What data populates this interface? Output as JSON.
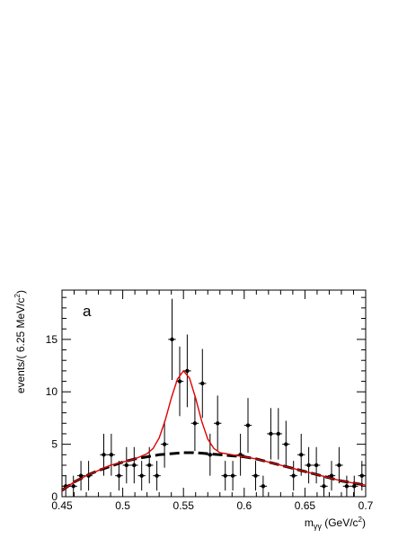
{
  "chart_data": {
    "type": "scatter",
    "panel_label": "a",
    "xlabel": "m_{γγ} (GeV/c²)",
    "xlabel_parts": {
      "main": "m",
      "sub": "γγ",
      "unit_pre": " (GeV/c",
      "unit_sup": "2",
      "unit_post": ")"
    },
    "ylabel": "events/( 6.25 MeV/c²)",
    "ylabel_parts": {
      "main": "events/( 6.25 MeV/c",
      "sup": "2",
      "post": ")"
    },
    "xlim": [
      0.45,
      0.7
    ],
    "ylim": [
      0,
      19.7
    ],
    "x_ticks": [
      {
        "value": 0.45,
        "label": "0.45"
      },
      {
        "value": 0.5,
        "label": "0.5"
      },
      {
        "value": 0.55,
        "label": "0.55"
      },
      {
        "value": 0.6,
        "label": "0.6"
      },
      {
        "value": 0.65,
        "label": "0.65"
      },
      {
        "value": 0.7,
        "label": "0.7"
      }
    ],
    "y_ticks": [
      {
        "value": 0,
        "label": "0"
      },
      {
        "value": 5,
        "label": "5"
      },
      {
        "value": 10,
        "label": "10"
      },
      {
        "value": 15,
        "label": "15"
      }
    ],
    "bin_width": 0.00625,
    "data_points": [
      {
        "x": 0.4531,
        "y": 1
      },
      {
        "x": 0.4594,
        "y": 1
      },
      {
        "x": 0.4656,
        "y": 2
      },
      {
        "x": 0.4719,
        "y": 2
      },
      {
        "x": 0.4844,
        "y": 4
      },
      {
        "x": 0.4906,
        "y": 4
      },
      {
        "x": 0.4969,
        "y": 2
      },
      {
        "x": 0.5031,
        "y": 3
      },
      {
        "x": 0.5094,
        "y": 3
      },
      {
        "x": 0.5156,
        "y": 2
      },
      {
        "x": 0.5219,
        "y": 3
      },
      {
        "x": 0.5281,
        "y": 2
      },
      {
        "x": 0.5344,
        "y": 5
      },
      {
        "x": 0.5406,
        "y": 15
      },
      {
        "x": 0.5469,
        "y": 11
      },
      {
        "x": 0.5531,
        "y": 12
      },
      {
        "x": 0.5594,
        "y": 7
      },
      {
        "x": 0.5656,
        "y": 10.8
      },
      {
        "x": 0.5719,
        "y": 4
      },
      {
        "x": 0.5781,
        "y": 7
      },
      {
        "x": 0.5844,
        "y": 2
      },
      {
        "x": 0.5906,
        "y": 2
      },
      {
        "x": 0.5969,
        "y": 4
      },
      {
        "x": 0.6031,
        "y": 6.8
      },
      {
        "x": 0.6094,
        "y": 2
      },
      {
        "x": 0.6156,
        "y": 1
      },
      {
        "x": 0.6219,
        "y": 6
      },
      {
        "x": 0.6281,
        "y": 6
      },
      {
        "x": 0.6344,
        "y": 5
      },
      {
        "x": 0.6406,
        "y": 2
      },
      {
        "x": 0.6469,
        "y": 4
      },
      {
        "x": 0.6531,
        "y": 3
      },
      {
        "x": 0.6594,
        "y": 3
      },
      {
        "x": 0.6656,
        "y": 1
      },
      {
        "x": 0.6719,
        "y": 2
      },
      {
        "x": 0.6781,
        "y": 3
      },
      {
        "x": 0.6844,
        "y": 1
      },
      {
        "x": 0.6906,
        "y": 1
      },
      {
        "x": 0.6969,
        "y": 2
      }
    ],
    "total_fit": {
      "color": "#e00000",
      "style": "solid",
      "points": [
        [
          0.45,
          0.6
        ],
        [
          0.46,
          1.4
        ],
        [
          0.47,
          2.0
        ],
        [
          0.48,
          2.5
        ],
        [
          0.49,
          3.0
        ],
        [
          0.5,
          3.3
        ],
        [
          0.51,
          3.6
        ],
        [
          0.52,
          4.1
        ],
        [
          0.525,
          4.6
        ],
        [
          0.53,
          5.6
        ],
        [
          0.535,
          7.3
        ],
        [
          0.54,
          9.4
        ],
        [
          0.545,
          11.2
        ],
        [
          0.55,
          12.0
        ],
        [
          0.555,
          11.3
        ],
        [
          0.56,
          9.4
        ],
        [
          0.565,
          7.2
        ],
        [
          0.57,
          5.5
        ],
        [
          0.575,
          4.6
        ],
        [
          0.58,
          4.2
        ],
        [
          0.59,
          4.0
        ],
        [
          0.6,
          3.8
        ],
        [
          0.61,
          3.6
        ],
        [
          0.62,
          3.3
        ],
        [
          0.63,
          3.0
        ],
        [
          0.64,
          2.7
        ],
        [
          0.65,
          2.4
        ],
        [
          0.66,
          2.1
        ],
        [
          0.67,
          1.8
        ],
        [
          0.68,
          1.5
        ],
        [
          0.69,
          1.3
        ],
        [
          0.7,
          1.1
        ]
      ]
    },
    "background_fit": {
      "color": "#000000",
      "style": "dashed",
      "points": [
        [
          0.45,
          0.6
        ],
        [
          0.46,
          1.4
        ],
        [
          0.47,
          2.0
        ],
        [
          0.48,
          2.5
        ],
        [
          0.49,
          2.9
        ],
        [
          0.5,
          3.3
        ],
        [
          0.51,
          3.6
        ],
        [
          0.52,
          3.8
        ],
        [
          0.53,
          4.0
        ],
        [
          0.54,
          4.1
        ],
        [
          0.55,
          4.2
        ],
        [
          0.56,
          4.2
        ],
        [
          0.57,
          4.1
        ],
        [
          0.58,
          4.0
        ],
        [
          0.59,
          3.9
        ],
        [
          0.6,
          3.8
        ],
        [
          0.61,
          3.6
        ],
        [
          0.62,
          3.3
        ],
        [
          0.63,
          3.0
        ],
        [
          0.64,
          2.7
        ],
        [
          0.65,
          2.4
        ],
        [
          0.66,
          2.1
        ],
        [
          0.67,
          1.8
        ],
        [
          0.68,
          1.5
        ],
        [
          0.69,
          1.3
        ],
        [
          0.7,
          1.1
        ]
      ]
    },
    "grid": false,
    "legend": "none"
  }
}
